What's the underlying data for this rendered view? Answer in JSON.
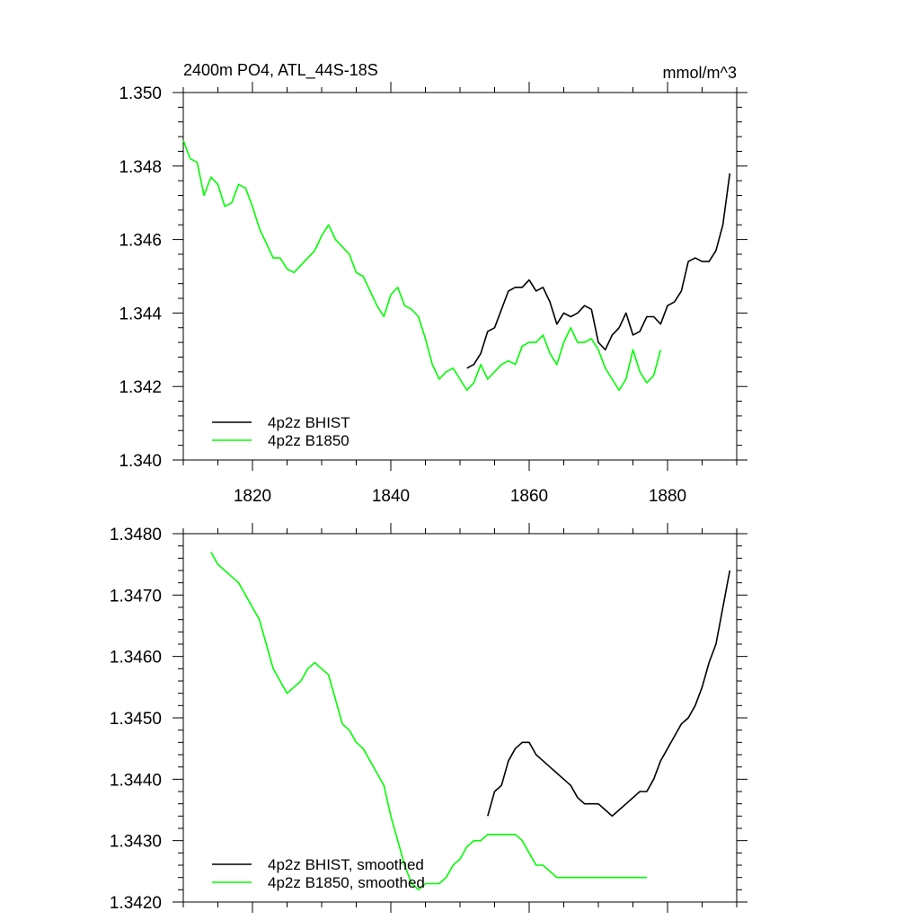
{
  "chart_data": [
    {
      "type": "line",
      "title_left": "2400m PO4, ATL_44S-18S",
      "title_right": "mmol/m^3",
      "xlim": [
        1810,
        1890
      ],
      "ylim": [
        1.34,
        1.35
      ],
      "x_ticks": [
        1820,
        1840,
        1860,
        1880
      ],
      "x_tick_labels": [
        "1820",
        "1840",
        "1860",
        "1880"
      ],
      "y_ticks": [
        1.34,
        1.342,
        1.344,
        1.346,
        1.348,
        1.35
      ],
      "y_tick_labels": [
        "1.340",
        "1.342",
        "1.344",
        "1.346",
        "1.348",
        "1.350"
      ],
      "grid": false,
      "legend_position": "bottom-left",
      "series": [
        {
          "name": "4p2z BHIST",
          "color": "#000000",
          "x": [
            1851,
            1852,
            1853,
            1854,
            1855,
            1856,
            1857,
            1858,
            1859,
            1860,
            1861,
            1862,
            1863,
            1864,
            1865,
            1866,
            1867,
            1868,
            1869,
            1870,
            1871,
            1872,
            1873,
            1874,
            1875,
            1876,
            1877,
            1878,
            1879,
            1880,
            1881,
            1882,
            1883,
            1884,
            1885,
            1886,
            1887,
            1888,
            1889
          ],
          "y": [
            1.3425,
            1.3426,
            1.3429,
            1.3435,
            1.3436,
            1.3441,
            1.3446,
            1.3447,
            1.3447,
            1.3449,
            1.3446,
            1.3447,
            1.3443,
            1.3437,
            1.344,
            1.3439,
            1.344,
            1.3442,
            1.3441,
            1.3432,
            1.343,
            1.3434,
            1.3436,
            1.344,
            1.3434,
            1.3435,
            1.3439,
            1.3439,
            1.3437,
            1.3442,
            1.3443,
            1.3446,
            1.3454,
            1.3455,
            1.3454,
            1.3454,
            1.3457,
            1.3464,
            1.3478
          ]
        },
        {
          "name": "4p2z B1850",
          "color": "#00ff00",
          "x": [
            1810,
            1811,
            1812,
            1813,
            1814,
            1815,
            1816,
            1817,
            1818,
            1819,
            1820,
            1821,
            1822,
            1823,
            1824,
            1825,
            1826,
            1827,
            1828,
            1829,
            1830,
            1831,
            1832,
            1833,
            1834,
            1835,
            1836,
            1837,
            1838,
            1839,
            1840,
            1841,
            1842,
            1843,
            1844,
            1845,
            1846,
            1847,
            1848,
            1849,
            1850,
            1851,
            1852,
            1853,
            1854,
            1855,
            1856,
            1857,
            1858,
            1859,
            1860,
            1861,
            1862,
            1863,
            1864,
            1865,
            1866,
            1867,
            1868,
            1869,
            1870,
            1871,
            1872,
            1873,
            1874,
            1875,
            1876,
            1877,
            1878,
            1879
          ],
          "y": [
            1.3487,
            1.3482,
            1.3481,
            1.3472,
            1.3477,
            1.3475,
            1.3469,
            1.347,
            1.3475,
            1.3474,
            1.3469,
            1.3463,
            1.3459,
            1.3455,
            1.3455,
            1.3452,
            1.3451,
            1.3453,
            1.3455,
            1.3457,
            1.3461,
            1.3464,
            1.346,
            1.3458,
            1.3456,
            1.3451,
            1.345,
            1.3446,
            1.3442,
            1.3439,
            1.3445,
            1.3447,
            1.3442,
            1.3441,
            1.3439,
            1.3433,
            1.3426,
            1.3422,
            1.3424,
            1.3425,
            1.3422,
            1.3419,
            1.3421,
            1.3426,
            1.3422,
            1.3424,
            1.3426,
            1.3427,
            1.3426,
            1.3431,
            1.3432,
            1.3432,
            1.3434,
            1.3429,
            1.3426,
            1.3432,
            1.3436,
            1.3432,
            1.3432,
            1.3433,
            1.343,
            1.3425,
            1.3422,
            1.3419,
            1.3422,
            1.343,
            1.3424,
            1.3421,
            1.3423,
            1.343
          ]
        }
      ]
    },
    {
      "type": "line",
      "xlim": [
        1810,
        1890
      ],
      "ylim": [
        1.342,
        1.348
      ],
      "x_ticks": [
        1820,
        1840,
        1860,
        1880
      ],
      "y_ticks": [
        1.342,
        1.343,
        1.344,
        1.345,
        1.346,
        1.347,
        1.348
      ],
      "y_tick_labels": [
        "1.3420",
        "1.3430",
        "1.3440",
        "1.3450",
        "1.3460",
        "1.3470",
        "1.3480"
      ],
      "grid": false,
      "legend_position": "bottom-left",
      "series": [
        {
          "name": "4p2z BHIST, smoothed",
          "color": "#000000",
          "x": [
            1854,
            1855,
            1856,
            1857,
            1858,
            1859,
            1860,
            1861,
            1862,
            1863,
            1864,
            1865,
            1866,
            1867,
            1868,
            1869,
            1870,
            1871,
            1872,
            1873,
            1874,
            1875,
            1876,
            1877,
            1878,
            1879,
            1880,
            1881,
            1882,
            1883,
            1884,
            1885,
            1886,
            1887,
            1888,
            1889
          ],
          "y": [
            1.3434,
            1.3438,
            1.3439,
            1.3443,
            1.3445,
            1.3446,
            1.3446,
            1.3444,
            1.3443,
            1.3442,
            1.3441,
            1.344,
            1.3439,
            1.3437,
            1.3436,
            1.3436,
            1.3436,
            1.3435,
            1.3434,
            1.3435,
            1.3436,
            1.3437,
            1.3438,
            1.3438,
            1.344,
            1.3443,
            1.3445,
            1.3447,
            1.3449,
            1.345,
            1.3452,
            1.3455,
            1.3459,
            1.3462,
            1.3468,
            1.3474
          ]
        },
        {
          "name": "4p2z B1850, smoothed",
          "color": "#00ff00",
          "x": [
            1814,
            1815,
            1816,
            1817,
            1818,
            1819,
            1820,
            1821,
            1822,
            1823,
            1824,
            1825,
            1826,
            1827,
            1828,
            1829,
            1830,
            1831,
            1832,
            1833,
            1834,
            1835,
            1836,
            1837,
            1838,
            1839,
            1840,
            1841,
            1842,
            1843,
            1844,
            1845,
            1846,
            1847,
            1848,
            1849,
            1850,
            1851,
            1852,
            1853,
            1854,
            1855,
            1856,
            1857,
            1858,
            1859,
            1860,
            1861,
            1862,
            1863,
            1864,
            1865,
            1866,
            1867,
            1868,
            1869,
            1870,
            1871,
            1872,
            1873,
            1874,
            1875,
            1876,
            1877
          ],
          "y": [
            1.3477,
            1.3475,
            1.3474,
            1.3473,
            1.3472,
            1.347,
            1.3468,
            1.3466,
            1.3462,
            1.3458,
            1.3456,
            1.3454,
            1.3455,
            1.3456,
            1.3458,
            1.3459,
            1.3458,
            1.3457,
            1.3453,
            1.3449,
            1.3448,
            1.3446,
            1.3445,
            1.3443,
            1.3441,
            1.3439,
            1.3434,
            1.343,
            1.3426,
            1.3423,
            1.3422,
            1.3423,
            1.3423,
            1.3423,
            1.3424,
            1.3426,
            1.3427,
            1.3429,
            1.343,
            1.343,
            1.3431,
            1.3431,
            1.3431,
            1.3431,
            1.3431,
            1.343,
            1.3428,
            1.3426,
            1.3426,
            1.3425,
            1.3424,
            1.3424,
            1.3424,
            1.3424,
            1.3424,
            1.3424,
            1.3424,
            1.3424,
            1.3424,
            1.3424,
            1.3424,
            1.3424,
            1.3424,
            1.3424
          ]
        }
      ]
    }
  ]
}
